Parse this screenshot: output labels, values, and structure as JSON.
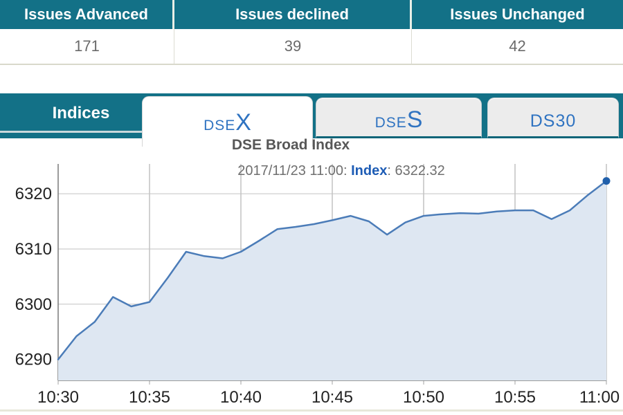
{
  "summary": {
    "columns": [
      {
        "label": "Issues Advanced",
        "value": "171"
      },
      {
        "label": "Issues declined",
        "value": "39"
      },
      {
        "label": "Issues Unchanged",
        "value": "42"
      }
    ]
  },
  "tabbar": {
    "indices_label": "Indices",
    "tabs": [
      {
        "id": "dsex",
        "prefix": "DSE",
        "suffix": "X",
        "active": true
      },
      {
        "id": "dses",
        "prefix": "DSE",
        "suffix": "S",
        "active": false
      },
      {
        "id": "ds30",
        "label": "DS30",
        "active": false
      }
    ]
  },
  "chart": {
    "title": "DSE Broad Index",
    "subtitle_prefix": "2017/11/23 11:00:",
    "subtitle_label": "Index",
    "subtitle_value": ": 6322.32"
  },
  "chart_data": {
    "type": "area",
    "title": "DSE Broad Index",
    "series_name": "Index",
    "date": "2017/11/23",
    "last_point": {
      "time": "11:00",
      "value": 6322.32
    },
    "x": [
      "10:30",
      "10:31",
      "10:32",
      "10:33",
      "10:34",
      "10:35",
      "10:36",
      "10:37",
      "10:38",
      "10:39",
      "10:40",
      "10:41",
      "10:42",
      "10:43",
      "10:44",
      "10:45",
      "10:46",
      "10:47",
      "10:48",
      "10:49",
      "10:50",
      "10:51",
      "10:52",
      "10:53",
      "10:54",
      "10:55",
      "10:56",
      "10:57",
      "10:58",
      "10:59",
      "11:00"
    ],
    "values": [
      6290.0,
      6294.2,
      6296.8,
      6301.3,
      6299.6,
      6300.4,
      6304.8,
      6309.5,
      6308.7,
      6308.3,
      6309.5,
      6311.5,
      6313.6,
      6314.0,
      6314.5,
      6315.2,
      6316.0,
      6315.0,
      6312.6,
      6314.8,
      6316.0,
      6316.3,
      6316.5,
      6316.4,
      6316.8,
      6317.0,
      6317.0,
      6315.4,
      6317.0,
      6319.8,
      6322.32
    ],
    "xticks": [
      "10:30",
      "10:35",
      "10:40",
      "10:45",
      "10:50",
      "10:55",
      "11:00"
    ],
    "yticks": [
      6290,
      6300,
      6310,
      6320
    ],
    "ylim": [
      6286.2,
      6325.4
    ],
    "grid": true,
    "legend": "none",
    "colors": {
      "line": "#4b7cb8",
      "fill": "#dee7f2",
      "marker": "#2160ab",
      "grid_h": "#c2c2c2",
      "grid_v": "#a3a3a3",
      "axis_line": "#7a7a7a",
      "tick_text": "#222222"
    }
  },
  "theme": {
    "accent_teal": "#137187",
    "tab_text_blue": "#2f73c1",
    "header_text": "#ffffff",
    "value_text": "#6a6a6a"
  }
}
